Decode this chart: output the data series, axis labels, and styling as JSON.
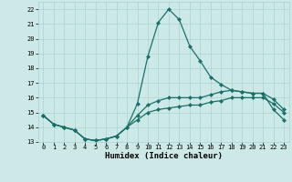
{
  "xlabel": "Humidex (Indice chaleur)",
  "ylabel": "",
  "xlim": [
    -0.5,
    23.5
  ],
  "ylim": [
    13,
    22.5
  ],
  "yticks": [
    13,
    14,
    15,
    16,
    17,
    18,
    19,
    20,
    21,
    22
  ],
  "xticks": [
    0,
    1,
    2,
    3,
    4,
    5,
    6,
    7,
    8,
    9,
    10,
    11,
    12,
    13,
    14,
    15,
    16,
    17,
    18,
    19,
    20,
    21,
    22,
    23
  ],
  "background_color": "#cce9e8",
  "grid_color": "#aad4d2",
  "line_color": "#1a7068",
  "series": {
    "max": [
      14.8,
      14.2,
      14.0,
      13.8,
      13.2,
      13.1,
      13.2,
      13.4,
      14.0,
      15.6,
      18.8,
      21.1,
      22.0,
      21.3,
      19.5,
      18.5,
      17.4,
      16.9,
      16.5,
      16.4,
      16.3,
      16.3,
      15.2,
      14.5
    ],
    "mean": [
      14.8,
      14.2,
      14.0,
      13.8,
      13.2,
      13.1,
      13.2,
      13.4,
      14.0,
      14.8,
      15.5,
      15.8,
      16.0,
      16.0,
      16.0,
      16.0,
      16.2,
      16.4,
      16.5,
      16.4,
      16.3,
      16.3,
      15.9,
      15.2
    ],
    "min": [
      14.8,
      14.2,
      14.0,
      13.8,
      13.2,
      13.1,
      13.2,
      13.4,
      14.0,
      14.5,
      15.0,
      15.2,
      15.3,
      15.4,
      15.5,
      15.5,
      15.7,
      15.8,
      16.0,
      16.0,
      16.0,
      16.0,
      15.6,
      15.0
    ]
  },
  "marker": "D",
  "markersize": 2,
  "linewidth": 0.9,
  "tick_fontsize": 5,
  "xlabel_fontsize": 6.5
}
